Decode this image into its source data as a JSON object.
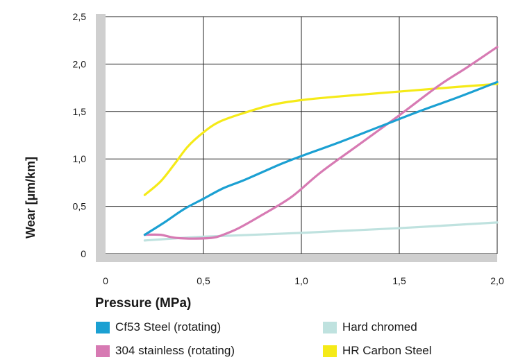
{
  "chart_data": {
    "type": "line",
    "title": "",
    "xlabel": "Pressure (MPa)",
    "ylabel": "Wear [µm/km]",
    "xlim": [
      0,
      2.0
    ],
    "ylim": [
      0,
      2.5
    ],
    "x_ticks": [
      "0",
      "0,5",
      "1,0",
      "1,5",
      "2,0"
    ],
    "y_ticks": [
      "0",
      "0,5",
      "1,0",
      "1,5",
      "2,0",
      "2,5"
    ],
    "grid": true,
    "legend_position": "bottom",
    "series": [
      {
        "name": "Cf53 Steel (rotating)",
        "color": "#1ba0d2",
        "points": [
          [
            0.2,
            0.2
          ],
          [
            0.3,
            0.33
          ],
          [
            0.4,
            0.47
          ],
          [
            0.5,
            0.58
          ],
          [
            0.6,
            0.69
          ],
          [
            0.7,
            0.77
          ],
          [
            0.8,
            0.86
          ],
          [
            0.9,
            0.95
          ],
          [
            1.0,
            1.03
          ],
          [
            1.2,
            1.18
          ],
          [
            1.4,
            1.34
          ],
          [
            1.6,
            1.5
          ],
          [
            1.8,
            1.65
          ],
          [
            2.0,
            1.81
          ]
        ]
      },
      {
        "name": "304 stainless (rotating)",
        "color": "#d77ab3",
        "points": [
          [
            0.2,
            0.2
          ],
          [
            0.28,
            0.2
          ],
          [
            0.35,
            0.17
          ],
          [
            0.45,
            0.16
          ],
          [
            0.55,
            0.17
          ],
          [
            0.6,
            0.2
          ],
          [
            0.68,
            0.27
          ],
          [
            0.8,
            0.41
          ],
          [
            0.95,
            0.6
          ],
          [
            1.1,
            0.86
          ],
          [
            1.3,
            1.16
          ],
          [
            1.5,
            1.46
          ],
          [
            1.7,
            1.77
          ],
          [
            1.85,
            1.97
          ],
          [
            2.0,
            2.18
          ]
        ]
      },
      {
        "name": "Hard chromed",
        "color": "#bfe2df",
        "points": [
          [
            0.2,
            0.14
          ],
          [
            0.5,
            0.18
          ],
          [
            1.0,
            0.22
          ],
          [
            1.5,
            0.27
          ],
          [
            2.0,
            0.33
          ]
        ]
      },
      {
        "name": "HR Carbon Steel",
        "color": "#f5ea18",
        "points": [
          [
            0.2,
            0.62
          ],
          [
            0.28,
            0.76
          ],
          [
            0.35,
            0.94
          ],
          [
            0.42,
            1.13
          ],
          [
            0.5,
            1.28
          ],
          [
            0.58,
            1.39
          ],
          [
            0.7,
            1.48
          ],
          [
            0.85,
            1.57
          ],
          [
            1.0,
            1.62
          ],
          [
            1.2,
            1.66
          ],
          [
            1.5,
            1.71
          ],
          [
            1.8,
            1.76
          ],
          [
            2.0,
            1.79
          ]
        ]
      }
    ]
  }
}
